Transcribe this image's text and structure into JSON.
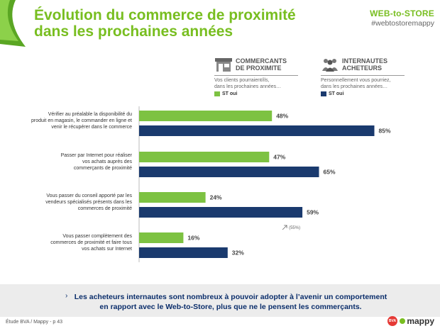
{
  "header": {
    "title_line1": "Évolution du commerce de proximité",
    "title_line2": "dans les prochaines années",
    "brand_logo": "WEB-to-STORE",
    "brand_tag": "#webtostoremappy"
  },
  "legend": {
    "merchants": {
      "icon": "storefront-icon",
      "title_line1": "COMMERCANTS",
      "title_line2": "DE PROXIMITE",
      "text_line1": "Vos clients pourraient/ils,",
      "text_line2": "dans les prochaines années…",
      "key_label": "ST oui"
    },
    "buyers": {
      "icon": "people-icon",
      "title_line1": "INTERNAUTES",
      "title_line2": "ACHETEURS",
      "text_line1": "Personnellement vous pourriez,",
      "text_line2": "dans les prochaines années…",
      "key_label": "ST oui"
    }
  },
  "colors": {
    "merchants": "#7dc242",
    "buyers": "#1a3a6e",
    "title": "#78be20"
  },
  "chart_data": {
    "type": "bar",
    "orientation": "horizontal",
    "categories": [
      [
        "Vérifier au préalable la disponibilité du",
        "produit en magasin, le commander en ligne et",
        "venir le récupérer dans le commerce"
      ],
      [
        "Passer par Internet pour réaliser",
        "vos achats auprès des",
        "commerçants de proximité"
      ],
      [
        "Vous passer du conseil apporté par les",
        "vendeurs spécialisés présents dans les",
        "commerces de proximité"
      ],
      [
        "Vous passer complètement des",
        "commerces de proximité et faire tous",
        "vos achats sur Internet"
      ]
    ],
    "series": [
      {
        "name": "ST oui",
        "values": [
          48,
          47,
          24,
          16
        ],
        "labels": [
          "48%",
          "47%",
          "24%",
          "16%"
        ]
      },
      {
        "name": "ST oui",
        "values": [
          85,
          65,
          59,
          32
        ],
        "labels": [
          "85%",
          "65%",
          "59%",
          "32%"
        ]
      }
    ],
    "xlim": [
      0,
      100
    ],
    "annotation": {
      "category_index": 2,
      "text": "(55%)"
    }
  },
  "bottom": {
    "bullet": "›",
    "text_line1": "Les acheteurs internautes sont nombreux à pouvoir adopter à l’avenir un comportement",
    "text_line2": "en rapport avec le Web-to-Store, plus que ne le pensent les commerçants."
  },
  "footer": {
    "source": "Étude BVA / Mappy - p 43",
    "bva": "BVA",
    "mappy": "mappy"
  }
}
